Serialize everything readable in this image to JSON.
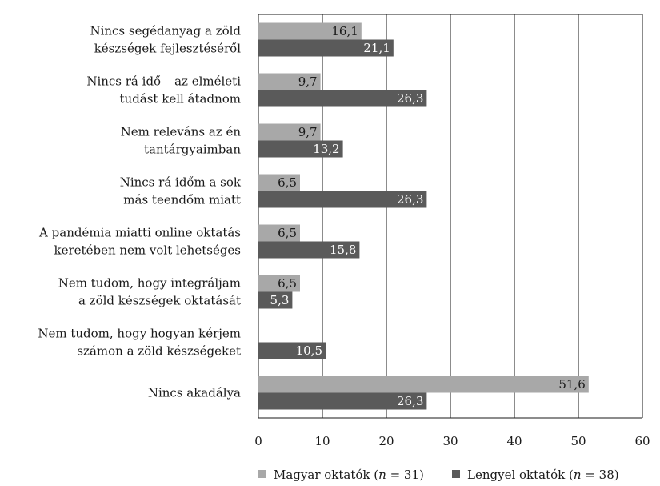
{
  "chart_data": {
    "type": "bar",
    "orientation": "horizontal",
    "categories": [
      [
        "Nincs segédanyag a zöld",
        "készségek fejlesztéséről"
      ],
      [
        "Nincs rá idő – az elméleti",
        "tudást kell átadnom"
      ],
      [
        "Nem releváns az én",
        "tantárgyaimban"
      ],
      [
        "Nincs rá időm a sok",
        "más teendőm miatt"
      ],
      [
        "A pandémia miatti online oktatás",
        "keretében nem volt lehetséges"
      ],
      [
        "Nem tudom, hogy integráljam",
        "a zöld készségek oktatását"
      ],
      [
        "Nem tudom, hogy hogyan kérjem",
        "számon a zöld készségeket"
      ],
      [
        "Nincs akadálya"
      ]
    ],
    "series": [
      {
        "name": "Magyar oktatók (n = 31)",
        "legend_prefix": "Magyar oktatók (",
        "legend_n": "n",
        "legend_suffix": " = 31)",
        "color": "#a8a8a8",
        "label_color": "#1a1a1a",
        "values": [
          16.1,
          9.7,
          9.7,
          6.5,
          6.5,
          6.5,
          null,
          51.6
        ],
        "value_labels": [
          "16,1",
          "9,7",
          "9,7",
          "6,5",
          "6,5",
          "6,5",
          "",
          "51,6"
        ]
      },
      {
        "name": "Lengyel oktatók (n = 38)",
        "legend_prefix": "Lengyel oktatók (",
        "legend_n": "n",
        "legend_suffix": " = 38)",
        "color": "#5a5a5a",
        "label_color": "#ffffff",
        "values": [
          21.1,
          26.3,
          13.2,
          26.3,
          15.8,
          5.3,
          10.5,
          26.3
        ],
        "value_labels": [
          "21,1",
          "26,3",
          "13,2",
          "26,3",
          "15,8",
          "5,3",
          "10,5",
          "26,3"
        ]
      }
    ],
    "x_ticks": [
      "0",
      "10",
      "20",
      "30",
      "40",
      "50",
      "60"
    ],
    "xlim": [
      0,
      60
    ],
    "grid": true,
    "legend_position": "bottom"
  }
}
